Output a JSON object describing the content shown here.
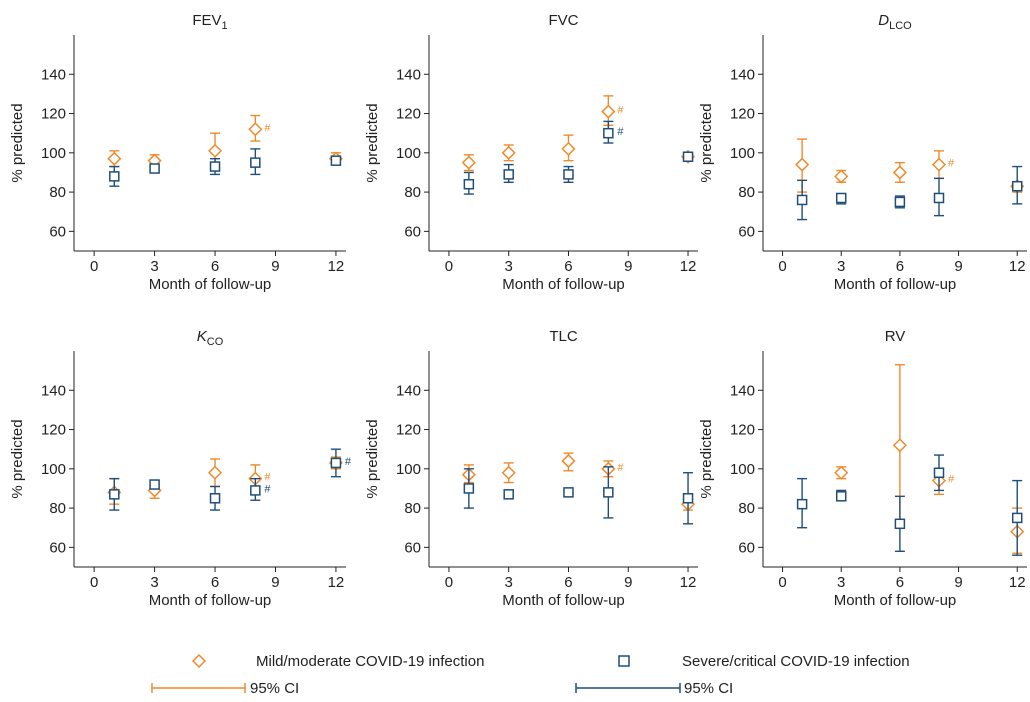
{
  "colors": {
    "mild": "#ef8a2c",
    "severe": "#1f4e79",
    "axis": "#222222"
  },
  "chart_data": [
    {
      "type": "scatter",
      "title": "FEV",
      "title_sub": "1",
      "title_italic": false,
      "xlabel": "Month of follow-up",
      "ylabel": "% predicted",
      "xlim": [
        -1,
        12.5
      ],
      "ylim": [
        50,
        160
      ],
      "xticks": [
        0,
        3,
        6,
        9,
        12
      ],
      "yticks": [
        60,
        80,
        100,
        120,
        140
      ],
      "grid": false,
      "series": [
        {
          "name": "Mild/moderate COVID-19 infection",
          "marker": "diamond",
          "color": "#ef8a2c",
          "points": [
            {
              "x": 1,
              "y": 97,
              "lo": 93,
              "hi": 101,
              "flag": ""
            },
            {
              "x": 3,
              "y": 96,
              "lo": 94,
              "hi": 99,
              "flag": ""
            },
            {
              "x": 6,
              "y": 101,
              "lo": 94,
              "hi": 110,
              "flag": ""
            },
            {
              "x": 8,
              "y": 112,
              "lo": 106,
              "hi": 119,
              "flag": "#"
            },
            {
              "x": 12,
              "y": 97,
              "lo": 95,
              "hi": 100,
              "flag": ""
            }
          ]
        },
        {
          "name": "Severe/critical COVID-19 infection",
          "marker": "square",
          "color": "#1f4e79",
          "points": [
            {
              "x": 1,
              "y": 88,
              "lo": 83,
              "hi": 93,
              "flag": ""
            },
            {
              "x": 3,
              "y": 92,
              "lo": 90,
              "hi": 94,
              "flag": ""
            },
            {
              "x": 6,
              "y": 93,
              "lo": 89,
              "hi": 97,
              "flag": ""
            },
            {
              "x": 8,
              "y": 95,
              "lo": 89,
              "hi": 102,
              "flag": ""
            },
            {
              "x": 12,
              "y": 96,
              "lo": 94,
              "hi": 98,
              "flag": ""
            }
          ]
        }
      ]
    },
    {
      "type": "scatter",
      "title": "FVC",
      "title_sub": "",
      "title_italic": false,
      "xlabel": "Month of follow-up",
      "ylabel": "% predicted",
      "xlim": [
        -1,
        12.5
      ],
      "ylim": [
        50,
        160
      ],
      "xticks": [
        0,
        3,
        6,
        9,
        12
      ],
      "yticks": [
        60,
        80,
        100,
        120,
        140
      ],
      "grid": false,
      "series": [
        {
          "name": "Mild/moderate COVID-19 infection",
          "marker": "diamond",
          "color": "#ef8a2c",
          "points": [
            {
              "x": 1,
              "y": 95,
              "lo": 91,
              "hi": 99,
              "flag": ""
            },
            {
              "x": 3,
              "y": 100,
              "lo": 96,
              "hi": 104,
              "flag": ""
            },
            {
              "x": 6,
              "y": 102,
              "lo": 96,
              "hi": 109,
              "flag": ""
            },
            {
              "x": 8,
              "y": 121,
              "lo": 114,
              "hi": 129,
              "flag": "#"
            },
            {
              "x": 12,
              "y": 98,
              "lo": 96,
              "hi": 100,
              "flag": ""
            }
          ]
        },
        {
          "name": "Severe/critical COVID-19 infection",
          "marker": "square",
          "color": "#1f4e79",
          "points": [
            {
              "x": 1,
              "y": 84,
              "lo": 79,
              "hi": 90,
              "flag": ""
            },
            {
              "x": 3,
              "y": 89,
              "lo": 85,
              "hi": 94,
              "flag": ""
            },
            {
              "x": 6,
              "y": 89,
              "lo": 85,
              "hi": 93,
              "flag": ""
            },
            {
              "x": 8,
              "y": 110,
              "lo": 105,
              "hi": 116,
              "flag": "#"
            },
            {
              "x": 12,
              "y": 98,
              "lo": 96,
              "hi": 100,
              "flag": ""
            }
          ]
        }
      ]
    },
    {
      "type": "scatter",
      "title": "D",
      "title_sub": "LCO",
      "title_italic": true,
      "xlabel": "Month of follow-up",
      "ylabel": "% predicted",
      "xlim": [
        -1,
        12.5
      ],
      "ylim": [
        50,
        160
      ],
      "xticks": [
        0,
        3,
        6,
        9,
        12
      ],
      "yticks": [
        60,
        80,
        100,
        120,
        140
      ],
      "grid": false,
      "series": [
        {
          "name": "Mild/moderate COVID-19 infection",
          "marker": "diamond",
          "color": "#ef8a2c",
          "points": [
            {
              "x": 1,
              "y": 94,
              "lo": 80,
              "hi": 107,
              "flag": ""
            },
            {
              "x": 3,
              "y": 88,
              "lo": 85,
              "hi": 91,
              "flag": ""
            },
            {
              "x": 6,
              "y": 90,
              "lo": 85,
              "hi": 95,
              "flag": ""
            },
            {
              "x": 8,
              "y": 94,
              "lo": 87,
              "hi": 101,
              "flag": "#"
            },
            {
              "x": 12,
              "y": 83,
              "lo": 80,
              "hi": 85,
              "flag": ""
            }
          ]
        },
        {
          "name": "Severe/critical COVID-19 infection",
          "marker": "square",
          "color": "#1f4e79",
          "points": [
            {
              "x": 1,
              "y": 76,
              "lo": 66,
              "hi": 86,
              "flag": ""
            },
            {
              "x": 3,
              "y": 77,
              "lo": 74,
              "hi": 79,
              "flag": ""
            },
            {
              "x": 6,
              "y": 75,
              "lo": 72,
              "hi": 78,
              "flag": ""
            },
            {
              "x": 8,
              "y": 77,
              "lo": 68,
              "hi": 87,
              "flag": ""
            },
            {
              "x": 12,
              "y": 83,
              "lo": 74,
              "hi": 93,
              "flag": ""
            }
          ]
        }
      ]
    },
    {
      "type": "scatter",
      "title": "K",
      "title_sub": "CO",
      "title_italic": true,
      "xlabel": "Month of follow-up",
      "ylabel": "% predicted",
      "xlim": [
        -1,
        12.5
      ],
      "ylim": [
        50,
        160
      ],
      "xticks": [
        0,
        3,
        6,
        9,
        12
      ],
      "yticks": [
        60,
        80,
        100,
        120,
        140
      ],
      "grid": false,
      "series": [
        {
          "name": "Mild/moderate COVID-19 infection",
          "marker": "diamond",
          "color": "#ef8a2c",
          "points": [
            {
              "x": 1,
              "y": 88,
              "lo": 82,
              "hi": 95,
              "flag": ""
            },
            {
              "x": 3,
              "y": 89,
              "lo": 85,
              "hi": 93,
              "flag": ""
            },
            {
              "x": 6,
              "y": 98,
              "lo": 91,
              "hi": 105,
              "flag": ""
            },
            {
              "x": 8,
              "y": 95,
              "lo": 89,
              "hi": 102,
              "flag": "#"
            },
            {
              "x": 12,
              "y": 103,
              "lo": 100,
              "hi": 106,
              "flag": ""
            }
          ]
        },
        {
          "name": "Severe/critical COVID-19 infection",
          "marker": "square",
          "color": "#1f4e79",
          "points": [
            {
              "x": 1,
              "y": 87,
              "lo": 79,
              "hi": 95,
              "flag": ""
            },
            {
              "x": 3,
              "y": 92,
              "lo": 90,
              "hi": 94,
              "flag": ""
            },
            {
              "x": 6,
              "y": 85,
              "lo": 79,
              "hi": 91,
              "flag": ""
            },
            {
              "x": 8,
              "y": 89,
              "lo": 84,
              "hi": 95,
              "flag": "#"
            },
            {
              "x": 12,
              "y": 103,
              "lo": 96,
              "hi": 110,
              "flag": "#"
            }
          ]
        }
      ]
    },
    {
      "type": "scatter",
      "title": "TLC",
      "title_sub": "",
      "title_italic": false,
      "xlabel": "Month of follow-up",
      "ylabel": "% predicted",
      "xlim": [
        -1,
        12.5
      ],
      "ylim": [
        50,
        160
      ],
      "xticks": [
        0,
        3,
        6,
        9,
        12
      ],
      "yticks": [
        60,
        80,
        100,
        120,
        140
      ],
      "grid": false,
      "series": [
        {
          "name": "Mild/moderate COVID-19 infection",
          "marker": "diamond",
          "color": "#ef8a2c",
          "points": [
            {
              "x": 1,
              "y": 97,
              "lo": 93,
              "hi": 102,
              "flag": ""
            },
            {
              "x": 3,
              "y": 98,
              "lo": 93,
              "hi": 103,
              "flag": ""
            },
            {
              "x": 6,
              "y": 104,
              "lo": 99,
              "hi": 108,
              "flag": ""
            },
            {
              "x": 8,
              "y": 100,
              "lo": 96,
              "hi": 104,
              "flag": "#"
            },
            {
              "x": 12,
              "y": 82,
              "lo": 79,
              "hi": 86,
              "flag": ""
            }
          ]
        },
        {
          "name": "Severe/critical COVID-19 infection",
          "marker": "square",
          "color": "#1f4e79",
          "points": [
            {
              "x": 1,
              "y": 90,
              "lo": 80,
              "hi": 100,
              "flag": ""
            },
            {
              "x": 3,
              "y": 87,
              "lo": 86,
              "hi": 89,
              "flag": ""
            },
            {
              "x": 6,
              "y": 88,
              "lo": 86,
              "hi": 90,
              "flag": ""
            },
            {
              "x": 8,
              "y": 88,
              "lo": 75,
              "hi": 101,
              "flag": ""
            },
            {
              "x": 12,
              "y": 85,
              "lo": 72,
              "hi": 98,
              "flag": ""
            }
          ]
        }
      ]
    },
    {
      "type": "scatter",
      "title": "RV",
      "title_sub": "",
      "title_italic": false,
      "xlabel": "Month of follow-up",
      "ylabel": "% predicted",
      "xlim": [
        -1,
        12.5
      ],
      "ylim": [
        50,
        160
      ],
      "xticks": [
        0,
        3,
        6,
        9,
        12
      ],
      "yticks": [
        60,
        80,
        100,
        120,
        140
      ],
      "grid": false,
      "series": [
        {
          "name": "Mild/moderate COVID-19 infection",
          "marker": "diamond",
          "color": "#ef8a2c",
          "points": [
            {
              "x": 3,
              "y": 98,
              "lo": 95,
              "hi": 101,
              "flag": ""
            },
            {
              "x": 6,
              "y": 112,
              "lo": 71,
              "hi": 153,
              "flag": ""
            },
            {
              "x": 8,
              "y": 94,
              "lo": 87,
              "hi": 100,
              "flag": "#"
            },
            {
              "x": 12,
              "y": 68,
              "lo": 57,
              "hi": 80,
              "flag": ""
            }
          ]
        },
        {
          "name": "Severe/critical COVID-19 infection",
          "marker": "square",
          "color": "#1f4e79",
          "points": [
            {
              "x": 1,
              "y": 82,
              "lo": 70,
              "hi": 95,
              "flag": ""
            },
            {
              "x": 3,
              "y": 86,
              "lo": 84,
              "hi": 89,
              "flag": ""
            },
            {
              "x": 6,
              "y": 72,
              "lo": 58,
              "hi": 86,
              "flag": ""
            },
            {
              "x": 8,
              "y": 98,
              "lo": 89,
              "hi": 107,
              "flag": ""
            },
            {
              "x": 12,
              "y": 75,
              "lo": 56,
              "hi": 94,
              "flag": ""
            }
          ]
        }
      ]
    }
  ],
  "legend": {
    "placement": "bottom",
    "mild_label": "Mild/moderate COVID-19 infection",
    "severe_label": "Severe/critical COVID-19 infection",
    "mild_ci_label": "95% CI",
    "severe_ci_label": "95% CI"
  }
}
